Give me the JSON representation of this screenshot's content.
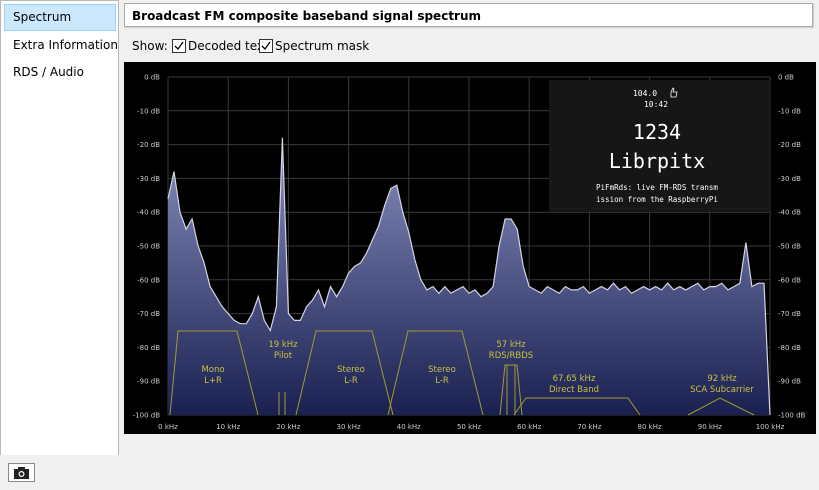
{
  "nav": {
    "items": [
      "Spectrum",
      "Extra Information",
      "RDS / Audio"
    ]
  },
  "header": {
    "title": "Broadcast FM composite baseband signal spectrum"
  },
  "options": {
    "label": "Show:",
    "checkboxes": [
      "Decoded text",
      "Spectrum mask"
    ]
  },
  "chart_data": {
    "type": "line",
    "color": "#d4d4e4",
    "x": [
      0,
      1,
      2,
      3,
      4,
      5,
      6,
      7,
      8,
      9,
      10,
      11,
      12,
      13,
      14,
      15,
      16,
      17,
      18,
      19,
      20,
      21,
      22,
      23,
      24,
      25,
      26,
      27,
      28,
      29,
      30,
      31,
      32,
      33,
      34,
      35,
      36,
      37,
      38,
      39,
      40,
      41,
      42,
      43,
      44,
      45,
      46,
      47,
      48,
      49,
      50,
      51,
      52,
      53,
      54,
      55,
      56,
      57,
      58,
      59,
      60,
      61,
      62,
      63,
      64,
      65,
      66,
      67,
      68,
      69,
      70,
      71,
      72,
      73,
      74,
      75,
      76,
      77,
      78,
      79,
      80,
      81,
      82,
      83,
      84,
      85,
      86,
      87,
      88,
      89,
      90,
      91,
      92,
      93,
      94,
      95,
      96,
      97,
      98,
      99,
      100
    ],
    "values": [
      -36,
      -28,
      -40,
      -45,
      -42,
      -50,
      -55,
      -62,
      -65,
      -68,
      -70,
      -72,
      -73,
      -73,
      -70,
      -65,
      -72,
      -75,
      -68,
      -18,
      -70,
      -72,
      -72,
      -68,
      -66,
      -63,
      -68,
      -62,
      -65,
      -62,
      -58,
      -56,
      -55,
      -52,
      -48,
      -44,
      -38,
      -33,
      -32,
      -40,
      -46,
      -54,
      -60,
      -63,
      -62,
      -64,
      -62,
      -64,
      -63,
      -62,
      -64,
      -63,
      -65,
      -64,
      -62,
      -50,
      -42,
      -42,
      -45,
      -56,
      -62,
      -63,
      -64,
      -62,
      -63,
      -64,
      -62,
      -63,
      -63,
      -62,
      -64,
      -63,
      -62,
      -63,
      -61,
      -63,
      -62,
      -64,
      -63,
      -62,
      -63,
      -62,
      -63,
      -61,
      -63,
      -62,
      -63,
      -62,
      -61,
      -63,
      -62,
      -62,
      -61,
      -63,
      -62,
      -61,
      -49,
      -62,
      -61,
      -61,
      -100
    ],
    "xlim": [
      0,
      100
    ],
    "xticks": [
      {
        "value": 0,
        "label": "0 kHz"
      },
      {
        "value": 10,
        "label": "10 kHz"
      },
      {
        "value": 20,
        "label": "20 kHz"
      },
      {
        "value": 30,
        "label": "30 kHz"
      },
      {
        "value": 40,
        "label": "40 kHz"
      },
      {
        "value": 50,
        "label": "50 kHz"
      },
      {
        "value": 60,
        "label": "60 kHz"
      },
      {
        "value": 70,
        "label": "70 kHz"
      },
      {
        "value": 80,
        "label": "80 kHz"
      },
      {
        "value": 90,
        "label": "90 kHz"
      },
      {
        "value": 100,
        "label": "100 kHz"
      }
    ],
    "ylim": [
      -100,
      0
    ],
    "yticks": [
      {
        "value": 0,
        "label": "0 dB"
      },
      {
        "value": -10,
        "label": "-10 dB"
      },
      {
        "value": -20,
        "label": "-20 dB"
      },
      {
        "value": -30,
        "label": "-30 dB"
      },
      {
        "value": -40,
        "label": "-40 dB"
      },
      {
        "value": -50,
        "label": "-50 dB"
      },
      {
        "value": -60,
        "label": "-60 dB"
      },
      {
        "value": -70,
        "label": "-70 dB"
      },
      {
        "value": -80,
        "label": "-80 dB"
      },
      {
        "value": -90,
        "label": "-90 dB"
      },
      {
        "value": -100,
        "label": "-100 dB"
      }
    ],
    "y2lim": [
      -100,
      0
    ],
    "y2ticks": [
      {
        "value": 0,
        "label": "0 dB"
      },
      {
        "value": -10,
        "label": "-10 dB"
      },
      {
        "value": -20,
        "label": "-20 dB"
      },
      {
        "value": -30,
        "label": "-30 dB"
      },
      {
        "value": -40,
        "label": "-40 dB"
      },
      {
        "value": -50,
        "label": "-50 dB"
      },
      {
        "value": -60,
        "label": "-60 dB"
      },
      {
        "value": -70,
        "label": "-70 dB"
      },
      {
        "value": -80,
        "label": "-80 dB"
      },
      {
        "value": -90,
        "label": "-90 dB"
      },
      {
        "value": -100,
        "label": "-100 dB"
      }
    ],
    "grid": true,
    "annotations": [
      [
        "Mono",
        "L+R"
      ],
      [
        "19 kHz",
        "Pilot"
      ],
      [
        "Stereo",
        "L-R"
      ],
      [
        "Stereo",
        "L-R"
      ],
      [
        "57 kHz",
        "RDS/RBDS"
      ],
      [
        "67.65 kHz",
        "Direct Band"
      ],
      [
        "92 kHz",
        "SCA Subcarrier"
      ]
    ]
  },
  "rds": {
    "frequency": "104.0",
    "time": "10:42",
    "pi": "1234",
    "ps": "Librpitx",
    "radiotext": [
      "PiFmRds: live FM-RDS transm",
      "ission from the RaspberryPi"
    ]
  }
}
